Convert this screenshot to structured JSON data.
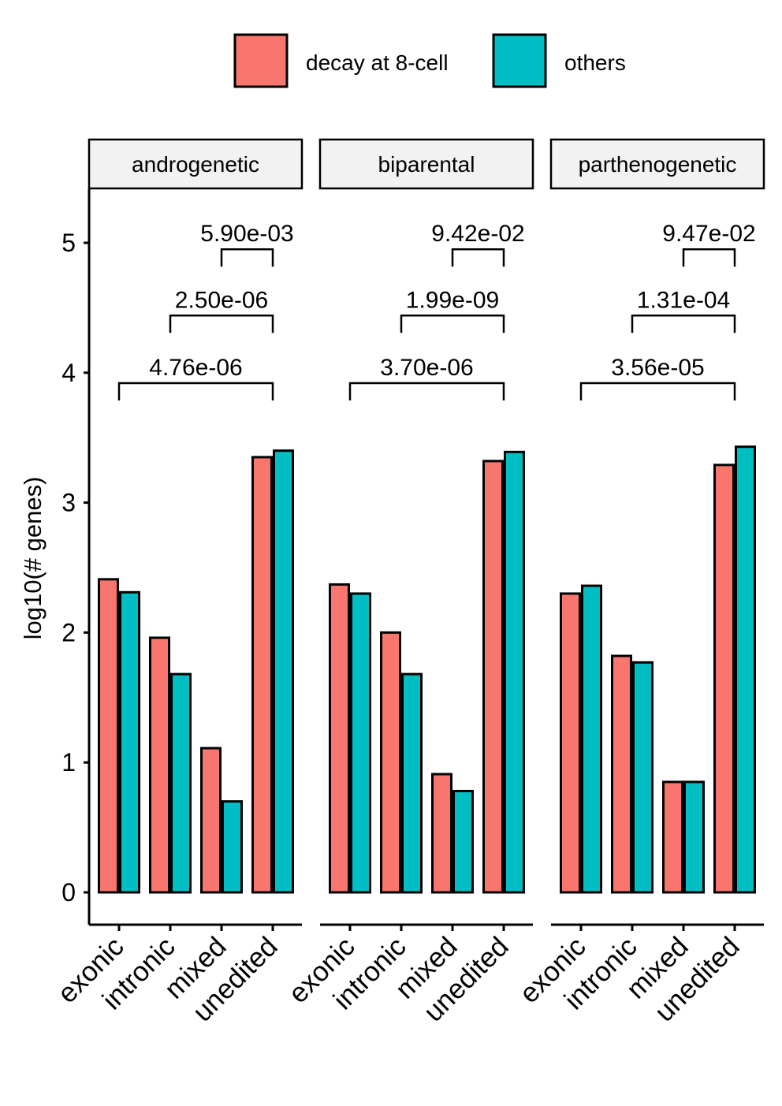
{
  "chart_data": {
    "type": "bar",
    "ylabel": "log10(# genes)",
    "ylim": [
      -0.25,
      5.4
    ],
    "yticks": [
      0,
      1,
      2,
      3,
      4,
      5
    ],
    "categories": [
      "exonic",
      "intronic",
      "mixed",
      "unedited"
    ],
    "legend": {
      "position": "top",
      "entries": [
        {
          "label": "decay at 8-cell",
          "color": "#F8766D"
        },
        {
          "label": "others",
          "color": "#00BFC4"
        }
      ]
    },
    "panels": [
      {
        "title": "androgenetic",
        "series": [
          {
            "name": "decay at 8-cell",
            "values": [
              2.41,
              1.96,
              1.11,
              3.35
            ]
          },
          {
            "name": "others",
            "values": [
              2.31,
              1.68,
              0.7,
              3.4
            ]
          }
        ],
        "brackets": [
          {
            "from": "mixed",
            "to": "unedited",
            "y": 4.95,
            "label": "5.90e-03"
          },
          {
            "from": "intronic",
            "to": "unedited",
            "y": 4.44,
            "label": "2.50e-06"
          },
          {
            "from": "exonic",
            "to": "unedited",
            "y": 3.92,
            "label": "4.76e-06"
          }
        ]
      },
      {
        "title": "biparental",
        "series": [
          {
            "name": "decay at 8-cell",
            "values": [
              2.37,
              2.0,
              0.91,
              3.32
            ]
          },
          {
            "name": "others",
            "values": [
              2.3,
              1.68,
              0.78,
              3.39
            ]
          }
        ],
        "brackets": [
          {
            "from": "mixed",
            "to": "unedited",
            "y": 4.95,
            "label": "9.42e-02"
          },
          {
            "from": "intronic",
            "to": "unedited",
            "y": 4.44,
            "label": "1.99e-09"
          },
          {
            "from": "exonic",
            "to": "unedited",
            "y": 3.92,
            "label": "3.70e-06"
          }
        ]
      },
      {
        "title": "parthenogenetic",
        "series": [
          {
            "name": "decay at 8-cell",
            "values": [
              2.3,
              1.82,
              0.85,
              3.29
            ]
          },
          {
            "name": "others",
            "values": [
              2.36,
              1.77,
              0.85,
              3.43
            ]
          }
        ],
        "brackets": [
          {
            "from": "mixed",
            "to": "unedited",
            "y": 4.95,
            "label": "9.47e-02"
          },
          {
            "from": "intronic",
            "to": "unedited",
            "y": 4.44,
            "label": "1.31e-04"
          },
          {
            "from": "exonic",
            "to": "unedited",
            "y": 3.92,
            "label": "3.56e-05"
          }
        ]
      }
    ]
  }
}
